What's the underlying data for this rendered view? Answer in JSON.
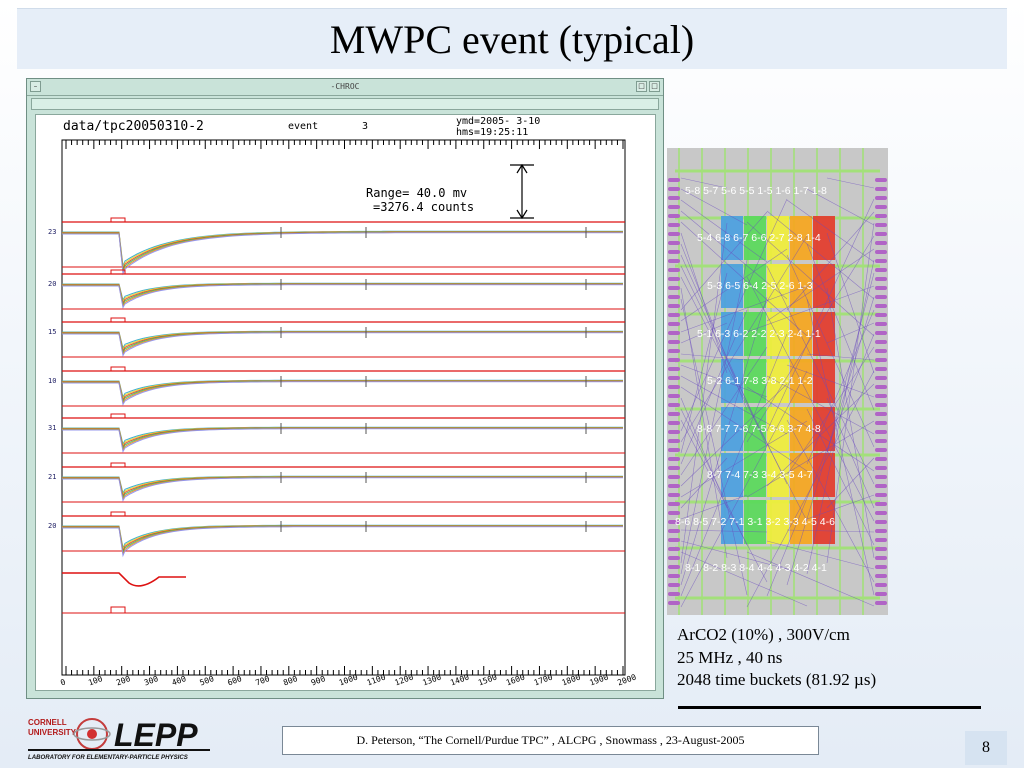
{
  "slide": {
    "title": "MWPC event (typical)",
    "page_number": "8",
    "citation": "D. Peterson,  “The Cornell/Purdue TPC” ,  ALCPG , Snowmass , 23-August-2005"
  },
  "xwindow": {
    "title": "-CHROC",
    "menu_icon": "minus-icon",
    "maximize_icon": "square-icon",
    "close_icon": "square-icon"
  },
  "plot": {
    "file": "data/tpc20050310-2",
    "event_label": "event",
    "event_number": "3",
    "ymd": "ymd=2005- 3-10",
    "hms": "hms=19:25:11",
    "range_line1": "Range=  40.0 mv",
    "range_line2": "=3276.4 counts",
    "x_ticks": [
      "0",
      "100",
      "200",
      "300",
      "400",
      "500",
      "600",
      "700",
      "800",
      "900",
      "1000",
      "1100",
      "1200",
      "1300",
      "1400",
      "1500",
      "1600",
      "1700",
      "1800",
      "1900",
      "2000"
    ],
    "row_labels": [
      "23",
      "20",
      "15",
      "10",
      "31",
      "21",
      "20"
    ]
  },
  "padmap": {
    "rows": [
      "5-8 5-7 5-6 5-5 1-5 1-6 1-7 1-8",
      "5-4 6-8 6-7 6-6 2-7 2-8 1-4",
      "5-3 6-5 6-4 2-5 2-6 1-3",
      "5-1 6-3 6-2 2-2 2-3 2-4 1-1",
      "5-2 6-1 7-8 3-8 2-1 1-2",
      "8-8 7-7 7-6 7-5 3-6 3-7 4-8",
      "8-7 7-4 7-3 3-4 3-5 4-7",
      "8-6 8-5 7-2 7-1 3-1 3-2 3-3 4-5 4-6",
      "8-1 8-2 8-3 8-4 4-4 4-3 4-2 4-1"
    ],
    "colors": {
      "background": "#c8c8c8",
      "trace": "#a3e07a",
      "pin": "#b064c6",
      "lines": "#6a4bbf"
    }
  },
  "notes": {
    "line1": "ArCO2 (10%) , 300V/cm",
    "line2": "25 MHz , 40 ns",
    "line3": "2048 time buckets  (81.92 µs)"
  },
  "logo": {
    "university": "CORNELL UNIVERSITY",
    "name": "LEPP",
    "subtitle": "LABORATORY FOR ELEMENTARY-PARTICLE PHYSICS"
  }
}
